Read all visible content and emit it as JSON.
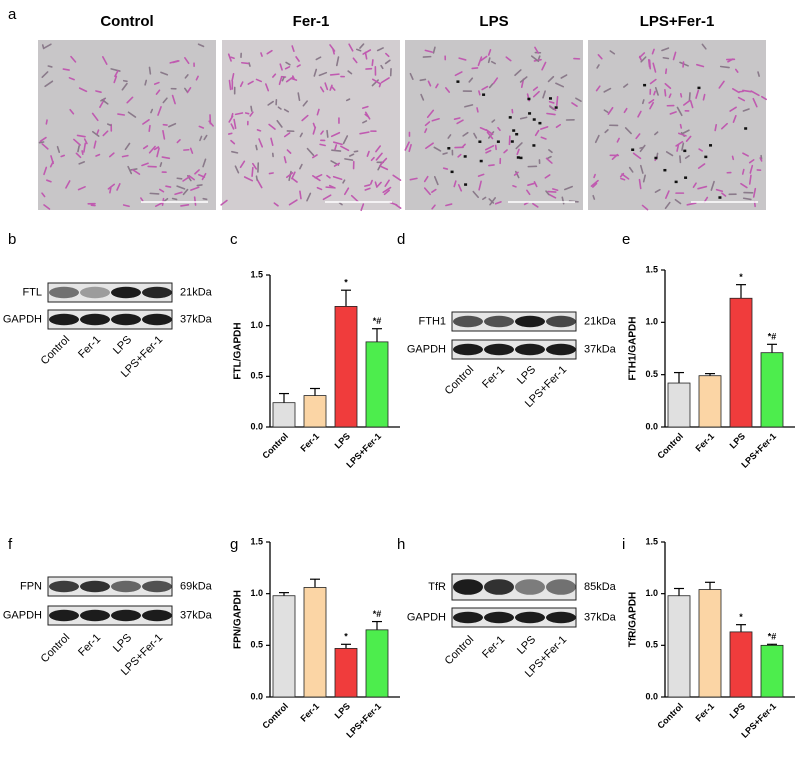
{
  "micrographs": {
    "panel_label": "a",
    "conditions": [
      "Control",
      "Fer-1",
      "LPS",
      "LPS+Fer-1"
    ]
  },
  "blots": [
    {
      "panel_label": "b",
      "protein": "FTL",
      "protein_size": "21kDa",
      "loading_control": "GAPDH",
      "control_size": "37kDa",
      "lanes": [
        "Control",
        "Fer-1",
        "LPS",
        "LPS+Fer-1"
      ]
    },
    {
      "panel_label": "d",
      "protein": "FTH1",
      "protein_size": "21kDa",
      "loading_control": "GAPDH",
      "control_size": "37kDa",
      "lanes": [
        "Control",
        "Fer-1",
        "LPS",
        "LPS+Fer-1"
      ]
    },
    {
      "panel_label": "f",
      "protein": "FPN",
      "protein_size": "69kDa",
      "loading_control": "GAPDH",
      "control_size": "37kDa",
      "lanes": [
        "Control",
        "Fer-1",
        "LPS",
        "LPS+Fer-1"
      ]
    },
    {
      "panel_label": "h",
      "protein": "TfR",
      "protein_size": "85kDa",
      "loading_control": "GAPDH",
      "control_size": "37kDa",
      "lanes": [
        "Control",
        "Fer-1",
        "LPS",
        "LPS+Fer-1"
      ]
    }
  ],
  "chart_data": [
    {
      "type": "bar",
      "panel_label": "c",
      "y_label": "FTL/GAPDH",
      "categories": [
        "Control",
        "Fer-1",
        "LPS",
        "LPS+Fer-1"
      ],
      "series": [
        {
          "values": [
            0.24,
            0.31,
            1.19,
            0.84
          ],
          "errors": [
            0.09,
            0.07,
            0.16,
            0.13
          ],
          "colors": [
            "#e0e0e0",
            "#fbd5a5",
            "#f03c3c",
            "#4ded4d"
          ]
        }
      ],
      "annotations": [
        {
          "category": "LPS",
          "text": "*"
        },
        {
          "category": "LPS+Fer-1",
          "text": "*#"
        }
      ],
      "ylim": [
        0,
        1.5
      ],
      "yticks": [
        {
          "value": 0,
          "label": "0.0"
        },
        0.5,
        {
          "value": 1,
          "label": "1.0"
        },
        1.5
      ]
    },
    {
      "type": "bar",
      "panel_label": "e",
      "y_label": "FTH1/GAPDH",
      "categories": [
        "Control",
        "Fer-1",
        "LPS",
        "LPS+Fer-1"
      ],
      "series": [
        {
          "values": [
            0.42,
            0.49,
            1.23,
            0.71
          ],
          "errors": [
            0.1,
            0.02,
            0.13,
            0.08
          ],
          "colors": [
            "#e0e0e0",
            "#fbd5a5",
            "#f03c3c",
            "#4ded4d"
          ]
        }
      ],
      "annotations": [
        {
          "category": "LPS",
          "text": "*"
        },
        {
          "category": "LPS+Fer-1",
          "text": "*#"
        }
      ],
      "ylim": [
        0,
        1.5
      ],
      "yticks": [
        {
          "value": 0,
          "label": "0.0"
        },
        0.5,
        {
          "value": 1,
          "label": "1.0"
        },
        1.5
      ]
    },
    {
      "type": "bar",
      "panel_label": "g",
      "y_label": "FPN/GAPDH",
      "categories": [
        "Control",
        "Fer-1",
        "LPS",
        "LPS+Fer-1"
      ],
      "series": [
        {
          "values": [
            0.98,
            1.06,
            0.47,
            0.65
          ],
          "errors": [
            0.03,
            0.08,
            0.04,
            0.08
          ],
          "colors": [
            "#e0e0e0",
            "#fbd5a5",
            "#f03c3c",
            "#4ded4d"
          ]
        }
      ],
      "annotations": [
        {
          "category": "LPS",
          "text": "*"
        },
        {
          "category": "LPS+Fer-1",
          "text": "*#"
        }
      ],
      "ylim": [
        0,
        1.5
      ],
      "yticks": [
        {
          "value": 0,
          "label": "0.0"
        },
        0.5,
        {
          "value": 1,
          "label": "1.0"
        },
        1.5
      ]
    },
    {
      "type": "bar",
      "panel_label": "i",
      "y_label": "TfR/GAPDH",
      "categories": [
        "Control",
        "Fer-1",
        "LPS",
        "LPS+Fer-1"
      ],
      "series": [
        {
          "values": [
            0.98,
            1.04,
            0.63,
            0.5
          ],
          "errors": [
            0.07,
            0.07,
            0.07,
            0.01
          ],
          "colors": [
            "#e0e0e0",
            "#fbd5a5",
            "#f03c3c",
            "#4ded4d"
          ]
        }
      ],
      "annotations": [
        {
          "category": "LPS",
          "text": "*"
        },
        {
          "category": "LPS+Fer-1",
          "text": "*#"
        }
      ],
      "ylim": [
        0,
        1.5
      ],
      "yticks": [
        {
          "value": 0,
          "label": "0.0"
        },
        0.5,
        {
          "value": 1,
          "label": "1.0"
        },
        1.5
      ]
    }
  ]
}
